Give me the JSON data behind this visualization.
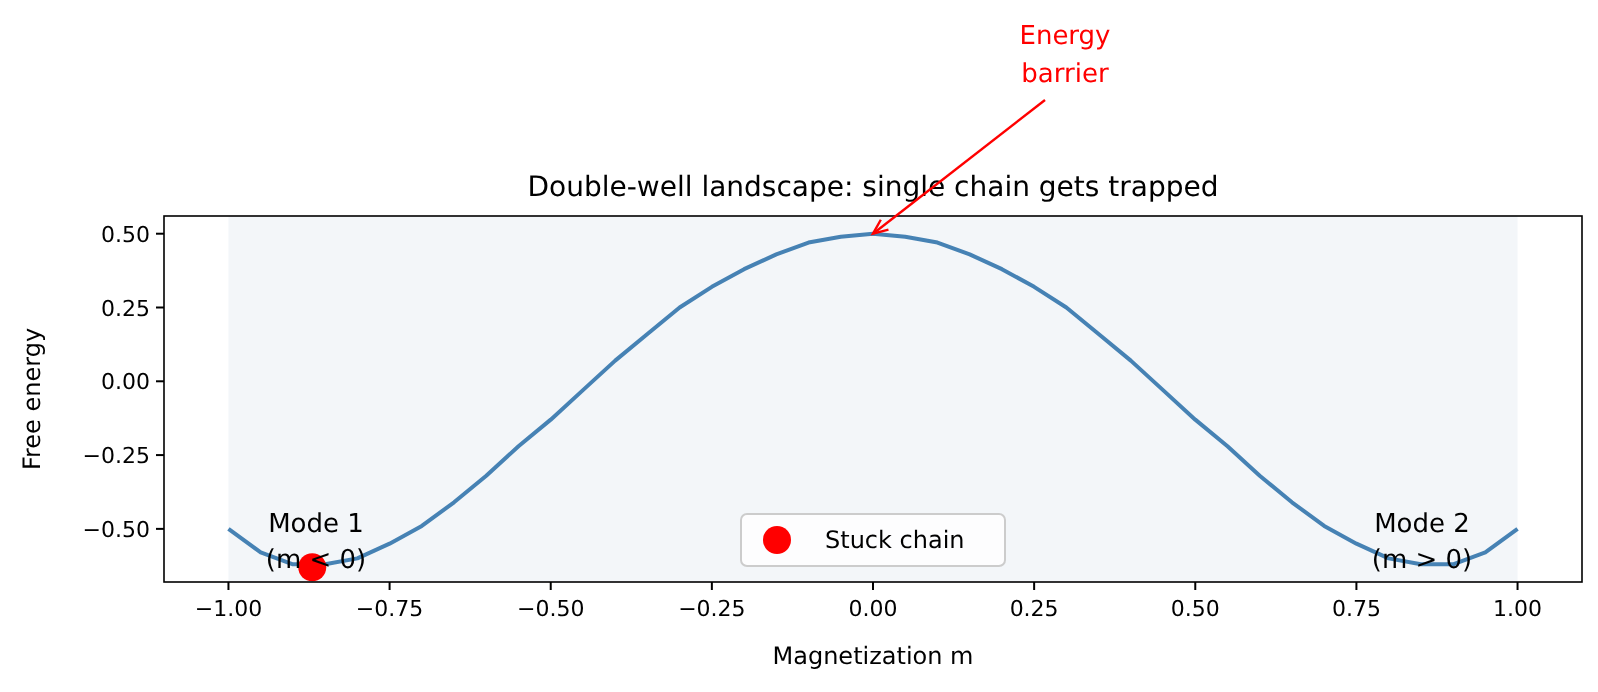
{
  "chart_data": {
    "type": "line",
    "title": "Double-well landscape: single chain gets trapped",
    "xlabel": "Magnetization m",
    "ylabel": "Free energy",
    "xlim": [
      -1.1,
      1.1
    ],
    "ylim": [
      -0.68,
      0.56
    ],
    "xticks": [
      {
        "value": -1,
        "label": "−1.00"
      },
      {
        "value": -0.75,
        "label": "−0.75"
      },
      {
        "value": -0.5,
        "label": "−0.50"
      },
      {
        "value": -0.25,
        "label": "−0.25"
      },
      {
        "value": 0,
        "label": "0.00"
      },
      {
        "value": 0.25,
        "label": "0.25"
      },
      {
        "value": 0.5,
        "label": "0.50"
      },
      {
        "value": 0.75,
        "label": "0.75"
      },
      {
        "value": 1,
        "label": "1.00"
      }
    ],
    "yticks": [
      {
        "value": -0.5,
        "label": "−0.50"
      },
      {
        "value": -0.25,
        "label": "−0.25"
      },
      {
        "value": 0,
        "label": "0.00"
      },
      {
        "value": 0.25,
        "label": "0.25"
      },
      {
        "value": 0.5,
        "label": "0.50"
      }
    ],
    "series": [
      {
        "color": "#4682b4",
        "x": [
          -1,
          -0.95,
          -0.9,
          -0.85,
          -0.8,
          -0.75,
          -0.7,
          -0.65,
          -0.6,
          -0.55,
          -0.5,
          -0.45,
          -0.4,
          -0.35,
          -0.3,
          -0.25,
          -0.2,
          -0.15,
          -0.1,
          -0.05,
          0,
          0.05,
          0.1,
          0.15,
          0.2,
          0.25,
          0.3,
          0.35,
          0.4,
          0.45,
          0.5,
          0.55,
          0.6,
          0.65,
          0.7,
          0.75,
          0.8,
          0.85,
          0.9,
          0.95,
          1
        ],
        "values": [
          -0.5,
          -0.58,
          -0.62,
          -0.62,
          -0.6,
          -0.55,
          -0.49,
          -0.41,
          -0.32,
          -0.22,
          -0.13,
          -0.03,
          0.07,
          0.16,
          0.25,
          0.32,
          0.38,
          0.43,
          0.47,
          0.49,
          0.5,
          0.49,
          0.47,
          0.43,
          0.38,
          0.32,
          0.25,
          0.16,
          0.07,
          -0.03,
          -0.13,
          -0.22,
          -0.32,
          -0.41,
          -0.49,
          -0.55,
          -0.6,
          -0.62,
          -0.62,
          -0.58,
          -0.5
        ]
      },
      {
        "type": "scatter",
        "name": "Stuck chain",
        "color": "#ff0000",
        "x": [
          -0.87
        ],
        "values": [
          -0.63
        ]
      }
    ],
    "annotations": [
      {
        "text": "Energy\nbarrier",
        "x": 0,
        "y": 0.5
      },
      "Mode 1\n(m < 0)",
      "Mode 2\n(m > 0)"
    ],
    "bands": [
      {
        "axis": "x",
        "from": -1,
        "to": 1,
        "color": "#f3f6f9"
      }
    ],
    "legend": "bottom",
    "grid": false
  }
}
